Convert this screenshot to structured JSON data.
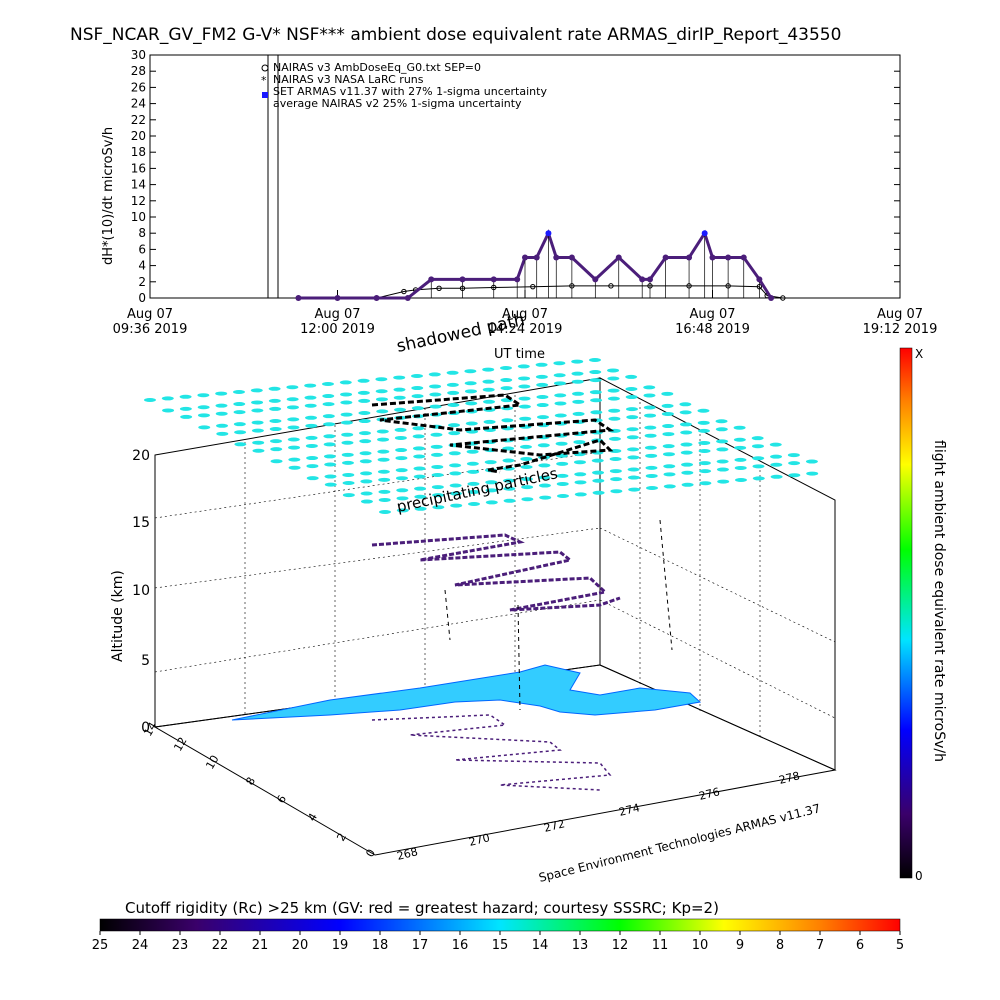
{
  "title": "NSF_NCAR_GV_FM2 G-V* NSF*** ambient dose equivalent rate ARMAS_dirIP_Report_43550",
  "colors": {
    "purple": "#4b1e7a",
    "blue_marker": "#1a1aff",
    "cyan": "#22e5e5",
    "land": "#33ccff",
    "black": "#000000"
  },
  "chart_data": [
    {
      "type": "line",
      "ylabel": "dH*(10)/dt microSv/h",
      "xlabel": "UT time",
      "ylim": [
        0,
        30
      ],
      "yticks": [
        "0",
        "2",
        "4",
        "6",
        "8",
        "10",
        "12",
        "14",
        "16",
        "18",
        "20",
        "22",
        "24",
        "26",
        "28",
        "30"
      ],
      "xticks": [
        {
          "line1": "Aug 07",
          "line2": "09:36 2019"
        },
        {
          "line1": "Aug 07",
          "line2": "12:00 2019"
        },
        {
          "line1": "Aug 07",
          "line2": "14:24 2019"
        },
        {
          "line1": "Aug 07",
          "line2": "16:48 2019"
        },
        {
          "line1": "Aug 07",
          "line2": "19:12 2019"
        }
      ],
      "xlim_hours": [
        9.6,
        19.2
      ],
      "legend": [
        "NAIRAS v3 AmbDoseEq_G0.txt SEP=0",
        "NAIRAS v3 NASA LaRC runs",
        "SET ARMAS v11.37 with 27% 1-sigma uncertainty",
        "average NAIRAS v2 25% 1-sigma uncertainty"
      ],
      "series": [
        {
          "name": "SET ARMAS v11.37 with 27% 1-sigma uncertainty",
          "x_hours": [
            11.5,
            12.0,
            12.5,
            12.9,
            13.2,
            13.6,
            14.0,
            14.3,
            14.4,
            14.55,
            14.7,
            14.8,
            15.0,
            15.3,
            15.6,
            15.9,
            16.0,
            16.2,
            16.5,
            16.7,
            16.8,
            17.0,
            17.2,
            17.4,
            17.55
          ],
          "values": [
            0,
            0,
            0,
            0,
            2.3,
            2.3,
            2.3,
            2.3,
            5.0,
            5.0,
            8.0,
            5.0,
            5.0,
            2.3,
            5.0,
            2.3,
            2.3,
            5.0,
            5.0,
            8.0,
            5.0,
            5.0,
            5.0,
            2.3,
            0
          ]
        },
        {
          "name": "NAIRAS v3 AmbDoseEq_G0.txt SEP=0",
          "x_hours": [
            11.5,
            12.0,
            12.5,
            12.85,
            13.0,
            13.3,
            13.6,
            14.0,
            14.5,
            15.0,
            15.5,
            16.0,
            16.5,
            17.0,
            17.4,
            17.5,
            17.7
          ],
          "values": [
            0,
            0,
            0,
            0.8,
            1.0,
            1.2,
            1.2,
            1.3,
            1.4,
            1.5,
            1.5,
            1.5,
            1.5,
            1.5,
            1.4,
            0.3,
            0
          ]
        }
      ]
    },
    {
      "type": "scatter",
      "zlabel": "Altitude (km)",
      "zticks": [
        "0",
        "5",
        "10",
        "15",
        "20"
      ],
      "lat_ticks": [
        "0",
        "2",
        "4",
        "6",
        "8",
        "10",
        "12",
        "14"
      ],
      "lon_ticks": [
        "268",
        "270",
        "272",
        "274",
        "276",
        "278"
      ],
      "annotations": [
        "shadowed path",
        "precipitating particles",
        "Space Environment Technologies ARMAS v11.37"
      ]
    },
    {
      "type": "heatmap",
      "colorbar_label": "flight ambient dose equivalent rate microSv/h",
      "colorbar_top": "X",
      "colorbar_bottom": "0"
    },
    {
      "type": "heatmap",
      "title": "Cutoff rigidity (Rc) >25 km (GV: red = greatest hazard; courtesy SSSRC; Kp=2)",
      "ticks": [
        "25",
        "24",
        "23",
        "22",
        "21",
        "20",
        "19",
        "18",
        "17",
        "16",
        "15",
        "14",
        "13",
        "12",
        "11",
        "10",
        "9",
        "8",
        "7",
        "6",
        "5"
      ]
    }
  ]
}
